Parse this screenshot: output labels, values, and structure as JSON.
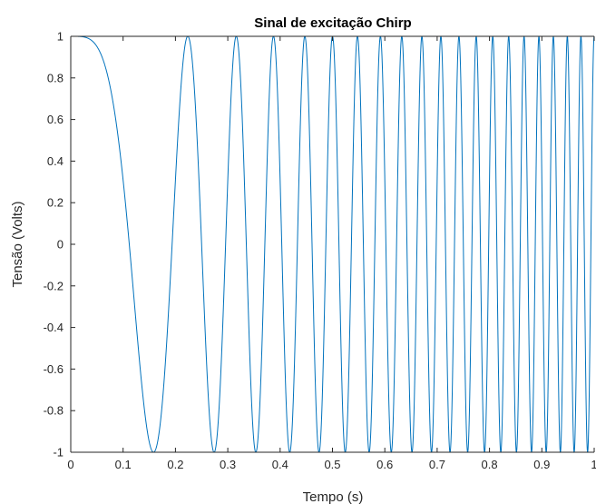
{
  "chart_data": {
    "type": "line",
    "title": "Sinal de excitação Chirp",
    "xlabel": "Tempo (s)",
    "ylabel": "Tensão (Volts)",
    "xlim": [
      0,
      1
    ],
    "ylim": [
      -1,
      1
    ],
    "xticks": [
      "0",
      "0.1",
      "0.2",
      "0.3",
      "0.4",
      "0.5",
      "0.6",
      "0.7",
      "0.8",
      "0.9",
      "1"
    ],
    "yticks": [
      "1",
      "0.8",
      "0.6",
      "0.4",
      "0.2",
      "0",
      "-0.2",
      "-0.4",
      "-0.6",
      "-0.8",
      "-1"
    ],
    "grid": false,
    "legend": "none",
    "series": [
      {
        "signal": "cos(2*pi*(f0*t + (f1-f0)/(2*T)*t^2))",
        "f0_hz": 0,
        "f1_hz": 40,
        "t_end_s": 1,
        "color": "#0072bd"
      }
    ]
  }
}
